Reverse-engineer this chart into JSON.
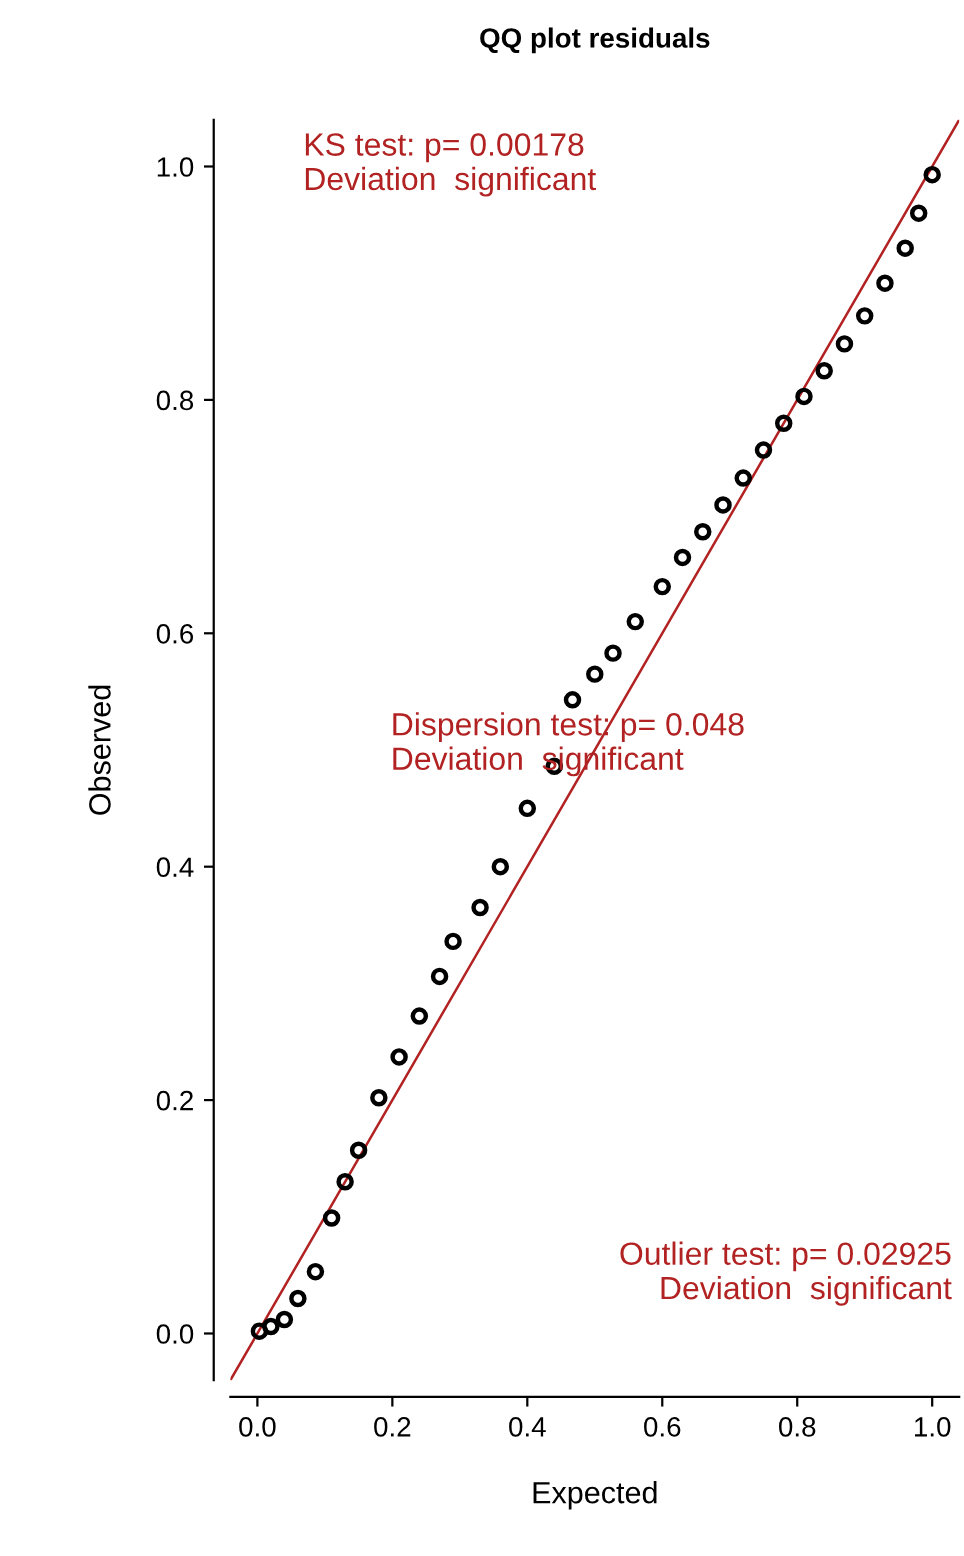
{
  "chart_data": {
    "type": "scatter",
    "title": "QQ plot residuals",
    "xlabel": "Expected",
    "ylabel": "Observed",
    "xlim": [
      -0.04,
      1.04
    ],
    "ylim": [
      -0.04,
      1.04
    ],
    "xticks": [
      {
        "value": 0,
        "label": "0.0"
      },
      0.2,
      0.4,
      0.6,
      0.8,
      {
        "value": 1,
        "label": "1.0"
      }
    ],
    "yticks": [
      {
        "value": 0,
        "label": "0.0"
      },
      0.2,
      0.4,
      0.6,
      0.8,
      {
        "value": 1,
        "label": "1.0"
      }
    ],
    "grid": false,
    "series": [
      {
        "color": "#000000",
        "marker": "circle",
        "x": [
          0.003,
          0.02,
          0.04,
          0.06,
          0.086,
          0.11,
          0.13,
          0.15,
          0.18,
          0.21,
          0.24,
          0.27,
          0.29,
          0.33,
          0.36,
          0.4,
          0.44,
          0.467,
          0.5,
          0.527,
          0.56,
          0.6,
          0.63,
          0.66,
          0.69,
          0.72,
          0.75,
          0.78,
          0.81,
          0.84,
          0.87,
          0.9,
          0.93,
          0.96,
          0.98,
          1.0
        ],
        "values": [
          0.002,
          0.006,
          0.012,
          0.03,
          0.053,
          0.099,
          0.13,
          0.157,
          0.202,
          0.237,
          0.272,
          0.306,
          0.336,
          0.365,
          0.4,
          0.45,
          0.486,
          0.543,
          0.565,
          0.583,
          0.61,
          0.64,
          0.665,
          0.687,
          0.71,
          0.733,
          0.757,
          0.78,
          0.803,
          0.825,
          0.848,
          0.872,
          0.9,
          0.93,
          0.96,
          0.993
        ]
      },
      {
        "type": "line",
        "color": "#b22222",
        "x": [
          -0.04,
          1.04
        ],
        "values": [
          -0.04,
          1.04
        ]
      }
    ],
    "annotations": [
      "KS test: p= 0.00178\nDeviation  significant",
      "Dispersion test: p= 0.048\nDeviation  significant",
      "Outlier test: p= 0.02925\nDeviation  significant"
    ]
  }
}
